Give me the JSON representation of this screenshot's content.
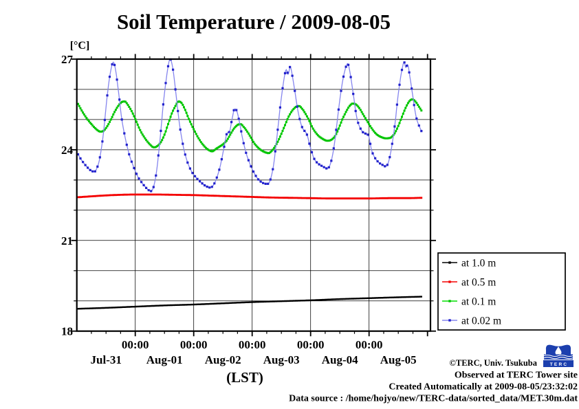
{
  "title": "Soil Temperature / 2009-08-05",
  "y_axis": {
    "unit_label": "[°C]",
    "min": 18,
    "max": 27,
    "major_ticks": [
      27,
      24,
      21,
      18
    ],
    "minor_step": 1
  },
  "x_axis": {
    "axis_label": "(LST)",
    "hour_tick_label": "00:00",
    "midnight_hours": [
      24,
      48,
      72,
      96,
      120
    ],
    "noon_hours": [
      12,
      36,
      60,
      84,
      108,
      132
    ],
    "day_labels": [
      "Jul-31",
      "Aug-01",
      "Aug-02",
      "Aug-03",
      "Aug-04",
      "Aug-05"
    ],
    "minor_step_h": 6,
    "xlim_h": [
      0,
      145.2
    ]
  },
  "legend": {
    "entries": [
      {
        "label": "at 1.0 m"
      },
      {
        "label": "at 0.5 m"
      },
      {
        "label": "at 0.1 m"
      },
      {
        "label": "at 0.02 m"
      }
    ]
  },
  "footer": {
    "copyright": "©TERC, Univ. Tsukuba",
    "observed": "Observed at TERC Tower site",
    "created": "Created Automatically at 2009-08-05/23:32:02",
    "source": "Data source : /home/hojyo/new/TERC-data/sorted_data/MET.30m.dat",
    "logo_text": "TERC"
  },
  "chart_data": {
    "type": "line",
    "title": "Soil Temperature / 2009-08-05",
    "xlabel": "(LST)",
    "ylabel": "[°C]",
    "ylim": [
      18,
      27
    ],
    "x_unit": "hours since 2009-07-31 00:00 LST",
    "grid": "on",
    "legend_position": "outside-right-bottom",
    "series": [
      {
        "name": "at 1.0 m",
        "color": "#000000",
        "line_color": "#000000",
        "marker_color": "#000000",
        "line_width": 2.0,
        "marker_size": 2.4,
        "marker_every_h": 0.5,
        "points": [
          [
            0.5,
            18.74
          ],
          [
            12,
            18.77
          ],
          [
            24,
            18.81
          ],
          [
            36,
            18.85
          ],
          [
            48,
            18.88
          ],
          [
            60,
            18.92
          ],
          [
            72,
            18.96
          ],
          [
            84,
            18.99
          ],
          [
            96,
            19.02
          ],
          [
            108,
            19.06
          ],
          [
            120,
            19.09
          ],
          [
            132,
            19.12
          ],
          [
            141.5,
            19.14
          ]
        ]
      },
      {
        "name": "at 0.5 m",
        "color": "#f40000",
        "line_color": "#f40000",
        "marker_color": "#f40000",
        "line_width": 2.2,
        "marker_size": 2.8,
        "marker_every_h": 0.5,
        "points": [
          [
            0.5,
            22.43
          ],
          [
            6,
            22.46
          ],
          [
            12,
            22.49
          ],
          [
            18,
            22.51
          ],
          [
            24,
            22.52
          ],
          [
            32,
            22.52
          ],
          [
            40,
            22.51
          ],
          [
            48,
            22.5
          ],
          [
            56,
            22.48
          ],
          [
            64,
            22.46
          ],
          [
            72,
            22.44
          ],
          [
            80,
            22.42
          ],
          [
            88,
            22.41
          ],
          [
            96,
            22.4
          ],
          [
            104,
            22.39
          ],
          [
            112,
            22.39
          ],
          [
            120,
            22.39
          ],
          [
            128,
            22.4
          ],
          [
            135,
            22.4
          ],
          [
            141.5,
            22.41
          ]
        ]
      },
      {
        "name": "at 0.1 m",
        "color": "#00cc00",
        "line_color": "#00dd00",
        "marker_color": "#00c400",
        "line_width": 1.6,
        "marker_size": 3.0,
        "marker_every_h": 0.5,
        "points": [
          [
            0.5,
            25.52
          ],
          [
            2,
            25.3
          ],
          [
            4,
            25.05
          ],
          [
            6,
            24.85
          ],
          [
            8,
            24.68
          ],
          [
            9.7,
            24.6
          ],
          [
            11,
            24.63
          ],
          [
            12.5,
            24.78
          ],
          [
            14,
            25.0
          ],
          [
            15.5,
            25.25
          ],
          [
            17,
            25.45
          ],
          [
            18.5,
            25.58
          ],
          [
            19.7,
            25.6
          ],
          [
            21,
            25.48
          ],
          [
            22.5,
            25.28
          ],
          [
            24,
            25.02
          ],
          [
            26,
            24.65
          ],
          [
            28,
            24.38
          ],
          [
            30,
            24.18
          ],
          [
            31.7,
            24.08
          ],
          [
            33,
            24.12
          ],
          [
            34.5,
            24.25
          ],
          [
            36,
            24.5
          ],
          [
            37.5,
            24.85
          ],
          [
            39,
            25.2
          ],
          [
            40.5,
            25.45
          ],
          [
            41.8,
            25.6
          ],
          [
            43,
            25.55
          ],
          [
            44.5,
            25.32
          ],
          [
            46,
            25.02
          ],
          [
            48,
            24.68
          ],
          [
            50,
            24.38
          ],
          [
            52,
            24.15
          ],
          [
            54,
            24.0
          ],
          [
            55.7,
            23.95
          ],
          [
            57,
            24.02
          ],
          [
            58.5,
            24.1
          ],
          [
            60,
            24.18
          ],
          [
            61.5,
            24.3
          ],
          [
            63,
            24.5
          ],
          [
            64.5,
            24.7
          ],
          [
            66,
            24.82
          ],
          [
            67.2,
            24.85
          ],
          [
            68.5,
            24.76
          ],
          [
            70,
            24.6
          ],
          [
            71.5,
            24.4
          ],
          [
            73,
            24.2
          ],
          [
            75,
            24.03
          ],
          [
            77,
            23.93
          ],
          [
            78.8,
            23.89
          ],
          [
            80,
            23.96
          ],
          [
            81.5,
            24.12
          ],
          [
            83,
            24.35
          ],
          [
            85,
            24.72
          ],
          [
            87,
            25.1
          ],
          [
            88.5,
            25.3
          ],
          [
            90,
            25.42
          ],
          [
            91.2,
            25.45
          ],
          [
            92.5,
            25.36
          ],
          [
            94,
            25.18
          ],
          [
            95.5,
            24.95
          ],
          [
            97,
            24.7
          ],
          [
            99,
            24.48
          ],
          [
            101,
            24.36
          ],
          [
            102.8,
            24.3
          ],
          [
            104.5,
            24.33
          ],
          [
            106,
            24.45
          ],
          [
            107.5,
            24.7
          ],
          [
            109,
            25.0
          ],
          [
            110.5,
            25.25
          ],
          [
            112,
            25.45
          ],
          [
            113.3,
            25.53
          ],
          [
            114.6,
            25.5
          ],
          [
            116,
            25.38
          ],
          [
            117.5,
            25.18
          ],
          [
            119,
            24.98
          ],
          [
            121,
            24.72
          ],
          [
            123,
            24.52
          ],
          [
            125,
            24.42
          ],
          [
            127,
            24.38
          ],
          [
            128.8,
            24.4
          ],
          [
            130.3,
            24.52
          ],
          [
            131.8,
            24.75
          ],
          [
            133.3,
            25.05
          ],
          [
            134.8,
            25.35
          ],
          [
            136.3,
            25.58
          ],
          [
            137.7,
            25.67
          ],
          [
            139,
            25.6
          ],
          [
            140.3,
            25.45
          ],
          [
            141.5,
            25.3
          ]
        ]
      },
      {
        "name": "at 0.02 m",
        "color": "#2222cc",
        "line_color": "#8585ee",
        "marker_color": "#2222cc",
        "line_width": 1.3,
        "marker_size": 3.2,
        "marker_every_h": 1.0,
        "points": [
          [
            0.5,
            23.85
          ],
          [
            2,
            23.65
          ],
          [
            4,
            23.45
          ],
          [
            6,
            23.3
          ],
          [
            7.3,
            23.28
          ],
          [
            8.3,
            23.4
          ],
          [
            9.5,
            23.75
          ],
          [
            11,
            24.6
          ],
          [
            12.5,
            25.8
          ],
          [
            14,
            26.65
          ],
          [
            15,
            26.9
          ],
          [
            16,
            26.6
          ],
          [
            17,
            26.0
          ],
          [
            18.5,
            25.0
          ],
          [
            20,
            24.35
          ],
          [
            21.5,
            23.85
          ],
          [
            23,
            23.5
          ],
          [
            25,
            23.12
          ],
          [
            27,
            22.88
          ],
          [
            29,
            22.7
          ],
          [
            30.3,
            22.63
          ],
          [
            31.3,
            22.72
          ],
          [
            32.5,
            23.15
          ],
          [
            34,
            24.2
          ],
          [
            35.5,
            25.5
          ],
          [
            37,
            26.5
          ],
          [
            38.3,
            27.0
          ],
          [
            39.3,
            26.75
          ],
          [
            40.5,
            26.0
          ],
          [
            42,
            24.95
          ],
          [
            43.5,
            24.2
          ],
          [
            45,
            23.7
          ],
          [
            47,
            23.3
          ],
          [
            49,
            23.08
          ],
          [
            51,
            22.92
          ],
          [
            53,
            22.8
          ],
          [
            54.8,
            22.75
          ],
          [
            56,
            22.82
          ],
          [
            57.5,
            23.08
          ],
          [
            59,
            23.5
          ],
          [
            60.5,
            24.1
          ],
          [
            61.7,
            24.55
          ],
          [
            62.7,
            24.6
          ],
          [
            63.7,
            25.0
          ],
          [
            64.8,
            25.35
          ],
          [
            65.7,
            25.28
          ],
          [
            66.7,
            24.95
          ],
          [
            68,
            24.4
          ],
          [
            69.5,
            23.9
          ],
          [
            71,
            23.55
          ],
          [
            72.5,
            23.28
          ],
          [
            74.5,
            23.02
          ],
          [
            76.5,
            22.9
          ],
          [
            78.3,
            22.87
          ],
          [
            79.3,
            22.97
          ],
          [
            80.7,
            23.45
          ],
          [
            82,
            24.3
          ],
          [
            83.5,
            25.4
          ],
          [
            85,
            26.3
          ],
          [
            86,
            26.65
          ],
          [
            86.8,
            26.5
          ],
          [
            87.6,
            26.75
          ],
          [
            88.5,
            26.45
          ],
          [
            89.5,
            25.95
          ],
          [
            91,
            25.2
          ],
          [
            92.5,
            24.75
          ],
          [
            94.5,
            24.5
          ],
          [
            96,
            24.05
          ],
          [
            97.5,
            23.7
          ],
          [
            99,
            23.55
          ],
          [
            101,
            23.45
          ],
          [
            102.8,
            23.38
          ],
          [
            104.2,
            23.55
          ],
          [
            105.7,
            24.15
          ],
          [
            107,
            25.0
          ],
          [
            108.5,
            25.95
          ],
          [
            110,
            26.6
          ],
          [
            111.2,
            26.85
          ],
          [
            112.3,
            26.5
          ],
          [
            113.5,
            25.85
          ],
          [
            115,
            25.05
          ],
          [
            116.5,
            24.7
          ],
          [
            118,
            24.55
          ],
          [
            119.7,
            24.48
          ],
          [
            121,
            24.0
          ],
          [
            122.5,
            23.72
          ],
          [
            124,
            23.58
          ],
          [
            125.5,
            23.5
          ],
          [
            126.8,
            23.45
          ],
          [
            128,
            23.6
          ],
          [
            129.3,
            24.1
          ],
          [
            130.7,
            24.9
          ],
          [
            132,
            25.85
          ],
          [
            133.4,
            26.6
          ],
          [
            134.4,
            26.9
          ],
          [
            135.1,
            26.72
          ],
          [
            135.8,
            26.82
          ],
          [
            136.8,
            26.4
          ],
          [
            138,
            25.75
          ],
          [
            139.3,
            25.1
          ],
          [
            140.5,
            24.8
          ],
          [
            141.5,
            24.62
          ]
        ]
      }
    ]
  }
}
